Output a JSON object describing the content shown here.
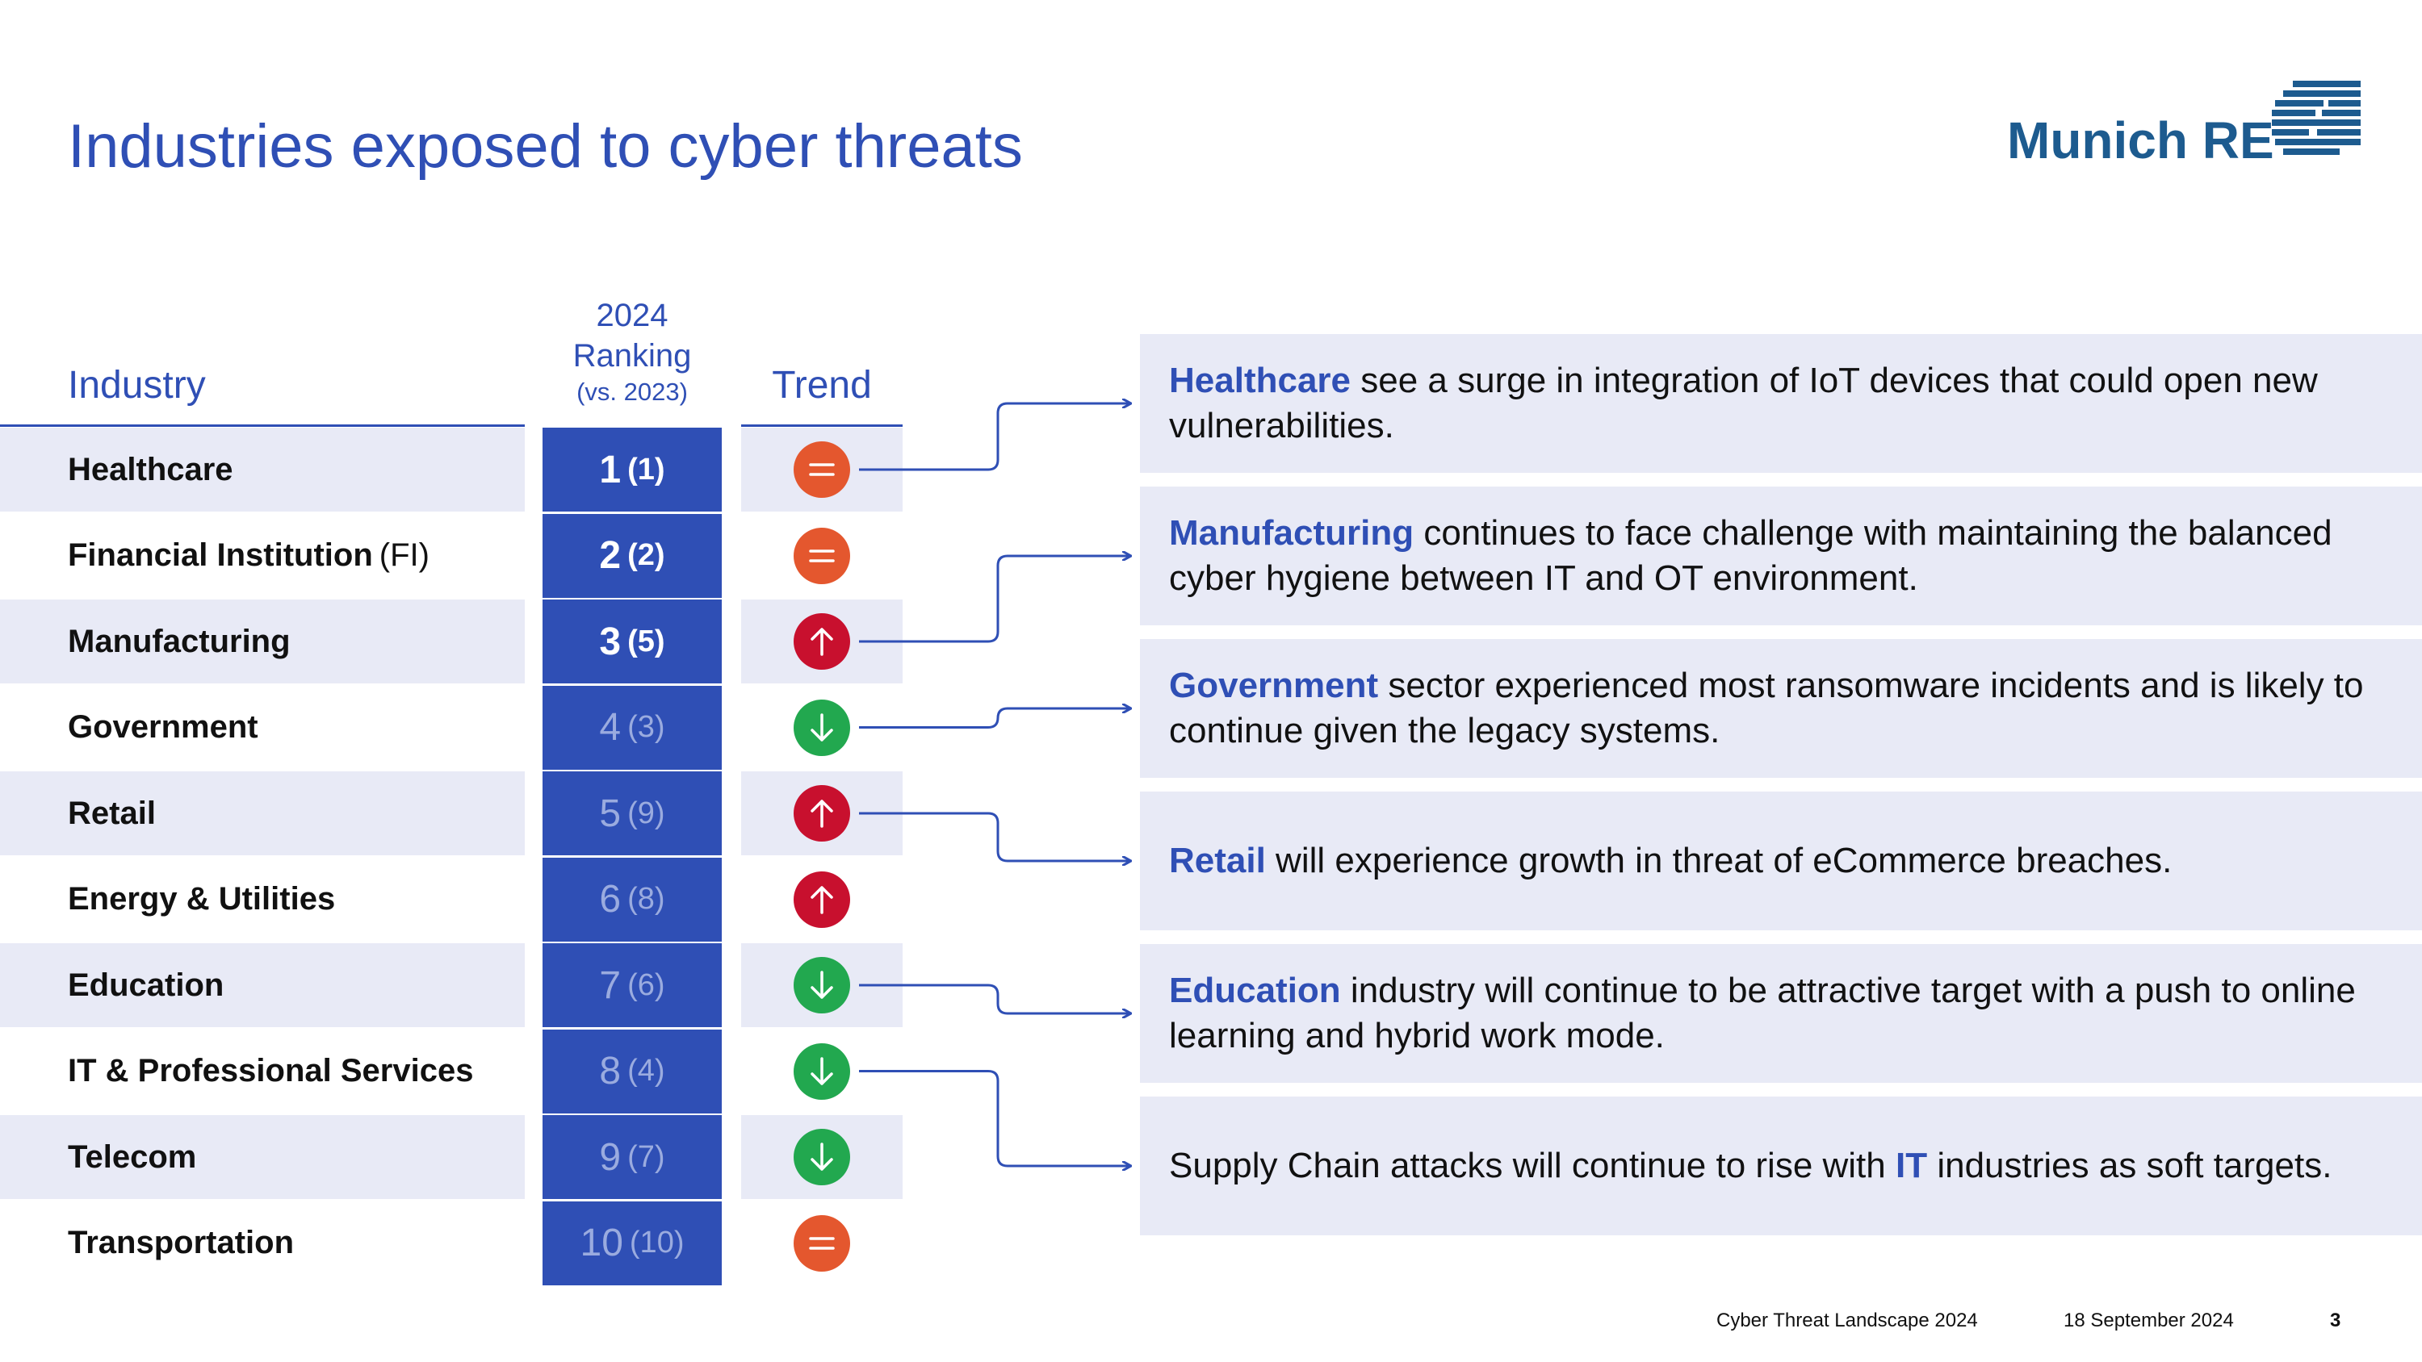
{
  "title": "Industries exposed to cyber threats",
  "logo": {
    "text": "Munich RE"
  },
  "headers": {
    "industry": "Industry",
    "ranking_line1": "2024",
    "ranking_line2": "Ranking",
    "ranking_line3": "(vs. 2023)",
    "trend": "Trend"
  },
  "colors": {
    "accent": "#2f4fb5",
    "row_shade": "#e8eaf6",
    "trend_equal": "#e4572e",
    "trend_up": "#c8102e",
    "trend_down": "#22a84f"
  },
  "industries": [
    {
      "name": "Healthcare",
      "suffix": "",
      "rank": "1",
      "prev": "(1)",
      "trend": "equal",
      "trend_icon": "equals-icon"
    },
    {
      "name": "Financial Institution",
      "suffix": "(FI)",
      "rank": "2",
      "prev": "(2)",
      "trend": "equal",
      "trend_icon": "equals-icon"
    },
    {
      "name": "Manufacturing",
      "suffix": "",
      "rank": "3",
      "prev": "(5)",
      "trend": "up",
      "trend_icon": "arrow-up-icon"
    },
    {
      "name": "Government",
      "suffix": "",
      "rank": "4",
      "prev": "(3)",
      "trend": "down",
      "trend_icon": "arrow-down-icon"
    },
    {
      "name": "Retail",
      "suffix": "",
      "rank": "5",
      "prev": "(9)",
      "trend": "up",
      "trend_icon": "arrow-up-icon"
    },
    {
      "name": "Energy & Utilities",
      "suffix": "",
      "rank": "6",
      "prev": "(8)",
      "trend": "up",
      "trend_icon": "arrow-up-icon"
    },
    {
      "name": "Education",
      "suffix": "",
      "rank": "7",
      "prev": "(6)",
      "trend": "down",
      "trend_icon": "arrow-down-icon"
    },
    {
      "name": "IT & Professional Services",
      "suffix": "",
      "rank": "8",
      "prev": "(4)",
      "trend": "down",
      "trend_icon": "arrow-down-icon"
    },
    {
      "name": "Telecom",
      "suffix": "",
      "rank": "9",
      "prev": "(7)",
      "trend": "down",
      "trend_icon": "arrow-down-icon"
    },
    {
      "name": "Transportation",
      "suffix": "",
      "rank": "10",
      "prev": "(10)",
      "trend": "equal",
      "trend_icon": "equals-icon"
    }
  ],
  "insights": [
    {
      "lead": "",
      "highlight": "Healthcare",
      "rest": " see a surge in integration of IoT devices that could open new vulnerabilities."
    },
    {
      "lead": "",
      "highlight": "Manufacturing",
      "rest": " continues to face challenge with maintaining the balanced cyber hygiene between IT and OT environment."
    },
    {
      "lead": "",
      "highlight": "Government",
      "rest": " sector experienced most ransomware incidents and is likely to continue given the legacy systems."
    },
    {
      "lead": "",
      "highlight": "Retail",
      "rest": " will experience growth in threat of eCommerce breaches."
    },
    {
      "lead": "",
      "highlight": "Education",
      "rest": " industry will continue to be attractive target with a push to online learning and hybrid work mode."
    },
    {
      "lead": "Supply Chain attacks will continue to rise with ",
      "highlight": "IT",
      "rest": " industries as soft targets."
    }
  ],
  "footer": {
    "doc_title": "Cyber Threat Landscape 2024",
    "date": "18 September 2024",
    "page": "3"
  }
}
